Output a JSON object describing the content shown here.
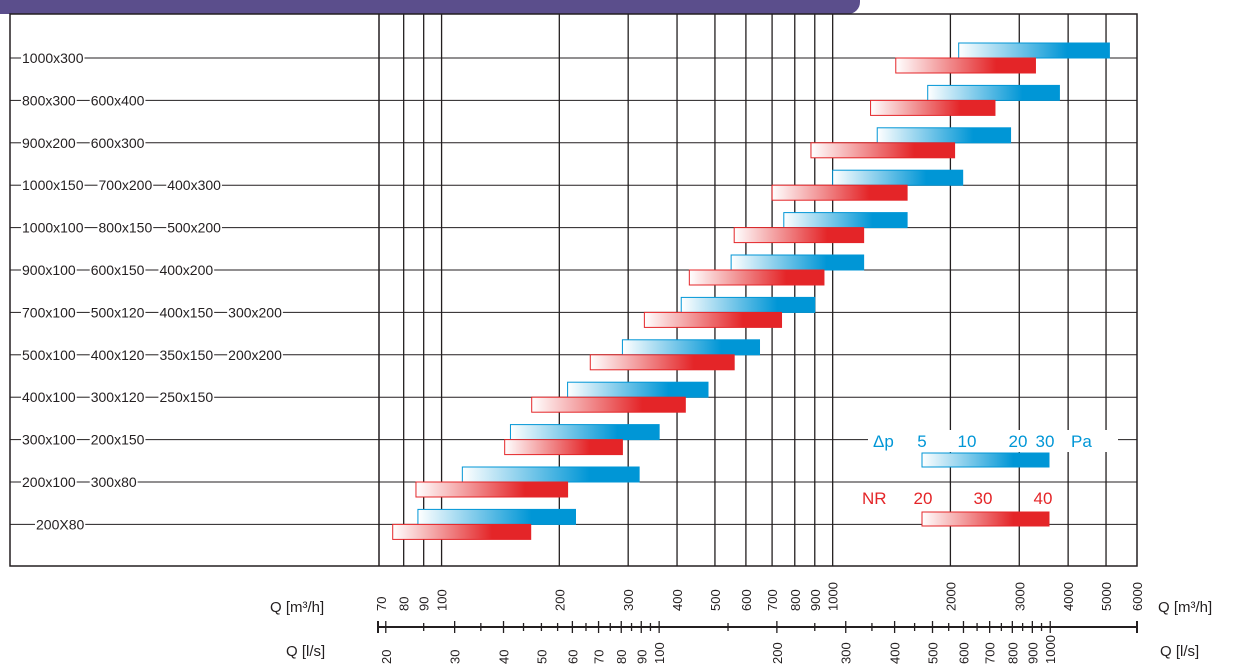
{
  "chart_data": {
    "type": "bar",
    "x_axis_top": {
      "label": "Q [m³/h]",
      "scale": "log",
      "range": [
        70,
        6000
      ],
      "ticks": [
        70,
        80,
        90,
        100,
        200,
        300,
        400,
        500,
        600,
        700,
        800,
        900,
        1000,
        2000,
        3000,
        4000,
        5000,
        6000
      ]
    },
    "x_axis_bottom": {
      "label": "Q [l/s]",
      "scale": "log",
      "ticks": [
        "20",
        "30",
        "40",
        "50",
        "60",
        "70",
        "80",
        "90",
        "100",
        "200",
        "300",
        "400",
        "500",
        "600",
        "700",
        "800",
        "900",
        "1000"
      ]
    },
    "grid": true,
    "rows": [
      {
        "labels": [
          "1000x300"
        ],
        "dp": [
          2100,
          5100
        ],
        "nr": [
          1450,
          3300
        ]
      },
      {
        "labels": [
          "800x300",
          "600x400"
        ],
        "dp": [
          1750,
          3800
        ],
        "nr": [
          1250,
          2600
        ]
      },
      {
        "labels": [
          "900x200",
          "600x300"
        ],
        "dp": [
          1300,
          2850
        ],
        "nr": [
          880,
          2050
        ]
      },
      {
        "labels": [
          "1000x150",
          "700x200",
          "400x300"
        ],
        "dp": [
          1000,
          2150
        ],
        "nr": [
          700,
          1550
        ]
      },
      {
        "labels": [
          "1000x100",
          "800x150",
          "500x200"
        ],
        "dp": [
          750,
          1550
        ],
        "nr": [
          560,
          1200
        ]
      },
      {
        "labels": [
          "900x100",
          "600x150",
          "400x200"
        ],
        "dp": [
          550,
          1200
        ],
        "nr": [
          430,
          950
        ]
      },
      {
        "labels": [
          "700x100",
          "500x120",
          "400x150",
          "300x200"
        ],
        "dp": [
          410,
          900
        ],
        "nr": [
          330,
          740
        ]
      },
      {
        "labels": [
          "500x100",
          "400x120",
          "350x150",
          "200x200"
        ],
        "dp": [
          290,
          650
        ],
        "nr": [
          240,
          560
        ]
      },
      {
        "labels": [
          "400x100",
          "300x120",
          "250x150"
        ],
        "dp": [
          210,
          480
        ],
        "nr": [
          170,
          420
        ]
      },
      {
        "labels": [
          "300x100",
          "200x150"
        ],
        "dp": [
          150,
          360
        ],
        "nr": [
          145,
          290
        ]
      },
      {
        "labels": [
          "200x100",
          "300x80"
        ],
        "dp": [
          113,
          320
        ],
        "nr": [
          86,
          210
        ]
      },
      {
        "labels": [
          "200X80"
        ],
        "dp": [
          87,
          220
        ],
        "nr": [
          75,
          169
        ]
      }
    ],
    "legend": {
      "placement": "bottom-right",
      "dp": {
        "prefix": "Δp",
        "ticks": [
          "5",
          "10",
          "20",
          "30"
        ],
        "unit": "Pa",
        "color": "#0096d6"
      },
      "nr": {
        "prefix": "NR",
        "ticks": [
          "20",
          "30",
          "40"
        ],
        "color": "#e42528"
      }
    },
    "colors": {
      "dp": "#0096d6",
      "nr": "#e42528",
      "grid": "#231f20"
    }
  }
}
